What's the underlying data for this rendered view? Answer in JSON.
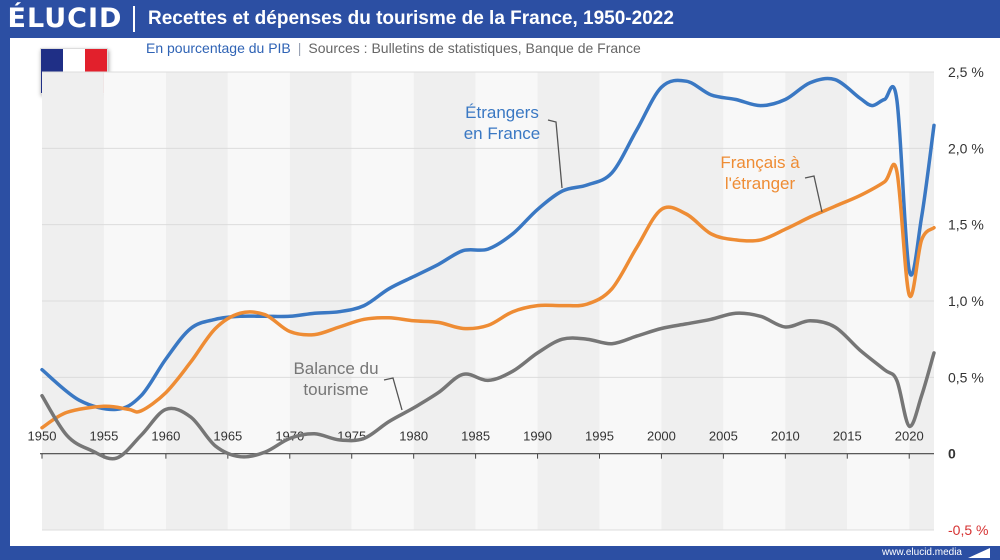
{
  "brand": {
    "logo": "ÉLUCID",
    "footer": "www.elucid.media"
  },
  "title": "Recettes et dépenses du tourisme de la France, 1950-2022",
  "subtitle": {
    "unit": "En pourcentage du PIB",
    "separator": "|",
    "sources": "Sources : Bulletins de statistiques, Banque de France"
  },
  "flag": {
    "colors": [
      "#1f2f86",
      "#ffffff",
      "#e2202c"
    ]
  },
  "chart_data": {
    "type": "line",
    "x_ticks": [
      1950,
      1955,
      1960,
      1965,
      1970,
      1975,
      1980,
      1985,
      1990,
      1995,
      2000,
      2005,
      2010,
      2015,
      2020
    ],
    "y_ticks": [
      {
        "value": 2.5,
        "label": "2,5 %"
      },
      {
        "value": 2.0,
        "label": "2,0 %"
      },
      {
        "value": 1.5,
        "label": "1,5 %"
      },
      {
        "value": 1.0,
        "label": "1,0 %"
      },
      {
        "value": 0.5,
        "label": "0,5 %"
      },
      {
        "value": 0,
        "label": "0"
      },
      {
        "value": -0.5,
        "label": "-0,5 %"
      }
    ],
    "xlim": [
      1950,
      2022
    ],
    "ylim": [
      -0.5,
      2.5
    ],
    "background_bands": "alternating 5-year shaded columns",
    "series": [
      {
        "name": "Étrangers en France",
        "label_lines": [
          "Étrangers",
          "en France"
        ],
        "color": "#3a78c3",
        "points": [
          [
            1950,
            0.55
          ],
          [
            1953,
            0.35
          ],
          [
            1956,
            0.29
          ],
          [
            1958,
            0.38
          ],
          [
            1960,
            0.62
          ],
          [
            1962,
            0.82
          ],
          [
            1964,
            0.88
          ],
          [
            1966,
            0.9
          ],
          [
            1968,
            0.9
          ],
          [
            1970,
            0.9
          ],
          [
            1972,
            0.92
          ],
          [
            1974,
            0.93
          ],
          [
            1976,
            0.97
          ],
          [
            1978,
            1.08
          ],
          [
            1980,
            1.16
          ],
          [
            1982,
            1.24
          ],
          [
            1984,
            1.33
          ],
          [
            1986,
            1.34
          ],
          [
            1988,
            1.44
          ],
          [
            1990,
            1.6
          ],
          [
            1992,
            1.72
          ],
          [
            1994,
            1.76
          ],
          [
            1996,
            1.84
          ],
          [
            1998,
            2.12
          ],
          [
            2000,
            2.4
          ],
          [
            2002,
            2.44
          ],
          [
            2004,
            2.35
          ],
          [
            2006,
            2.32
          ],
          [
            2008,
            2.28
          ],
          [
            2010,
            2.32
          ],
          [
            2012,
            2.43
          ],
          [
            2014,
            2.45
          ],
          [
            2016,
            2.33
          ],
          [
            2017,
            2.28
          ],
          [
            2018,
            2.32
          ],
          [
            2019,
            2.32
          ],
          [
            2020,
            1.2
          ],
          [
            2021,
            1.55
          ],
          [
            2022,
            2.15
          ]
        ]
      },
      {
        "name": "Français à l'étranger",
        "label_lines": [
          "Français à",
          "l'étranger"
        ],
        "color": "#ee8c34",
        "points": [
          [
            1950,
            0.17
          ],
          [
            1952,
            0.27
          ],
          [
            1955,
            0.31
          ],
          [
            1957,
            0.29
          ],
          [
            1958,
            0.28
          ],
          [
            1960,
            0.4
          ],
          [
            1962,
            0.6
          ],
          [
            1964,
            0.82
          ],
          [
            1966,
            0.92
          ],
          [
            1968,
            0.91
          ],
          [
            1970,
            0.8
          ],
          [
            1972,
            0.78
          ],
          [
            1974,
            0.83
          ],
          [
            1976,
            0.88
          ],
          [
            1978,
            0.89
          ],
          [
            1980,
            0.87
          ],
          [
            1982,
            0.86
          ],
          [
            1984,
            0.82
          ],
          [
            1986,
            0.84
          ],
          [
            1988,
            0.93
          ],
          [
            1990,
            0.97
          ],
          [
            1992,
            0.97
          ],
          [
            1994,
            0.98
          ],
          [
            1996,
            1.08
          ],
          [
            1998,
            1.35
          ],
          [
            2000,
            1.6
          ],
          [
            2002,
            1.57
          ],
          [
            2004,
            1.44
          ],
          [
            2006,
            1.4
          ],
          [
            2008,
            1.4
          ],
          [
            2010,
            1.47
          ],
          [
            2012,
            1.55
          ],
          [
            2014,
            1.62
          ],
          [
            2016,
            1.69
          ],
          [
            2018,
            1.78
          ],
          [
            2019,
            1.85
          ],
          [
            2020,
            1.04
          ],
          [
            2021,
            1.4
          ],
          [
            2022,
            1.48
          ]
        ]
      },
      {
        "name": "Balance du tourisme",
        "label_lines": [
          "Balance du",
          "tourisme"
        ],
        "color": "#767676",
        "points": [
          [
            1950,
            0.38
          ],
          [
            1952,
            0.12
          ],
          [
            1954,
            0.02
          ],
          [
            1956,
            -0.03
          ],
          [
            1958,
            0.12
          ],
          [
            1960,
            0.29
          ],
          [
            1962,
            0.24
          ],
          [
            1964,
            0.05
          ],
          [
            1966,
            -0.02
          ],
          [
            1968,
            0.01
          ],
          [
            1970,
            0.1
          ],
          [
            1972,
            0.13
          ],
          [
            1974,
            0.09
          ],
          [
            1976,
            0.1
          ],
          [
            1978,
            0.21
          ],
          [
            1980,
            0.3
          ],
          [
            1982,
            0.4
          ],
          [
            1984,
            0.52
          ],
          [
            1986,
            0.48
          ],
          [
            1988,
            0.54
          ],
          [
            1990,
            0.66
          ],
          [
            1992,
            0.75
          ],
          [
            1994,
            0.75
          ],
          [
            1996,
            0.72
          ],
          [
            1998,
            0.77
          ],
          [
            2000,
            0.82
          ],
          [
            2002,
            0.85
          ],
          [
            2004,
            0.88
          ],
          [
            2006,
            0.92
          ],
          [
            2008,
            0.9
          ],
          [
            2010,
            0.83
          ],
          [
            2012,
            0.87
          ],
          [
            2014,
            0.83
          ],
          [
            2016,
            0.68
          ],
          [
            2018,
            0.55
          ],
          [
            2019,
            0.48
          ],
          [
            2020,
            0.18
          ],
          [
            2021,
            0.38
          ],
          [
            2022,
            0.66
          ]
        ]
      }
    ]
  }
}
